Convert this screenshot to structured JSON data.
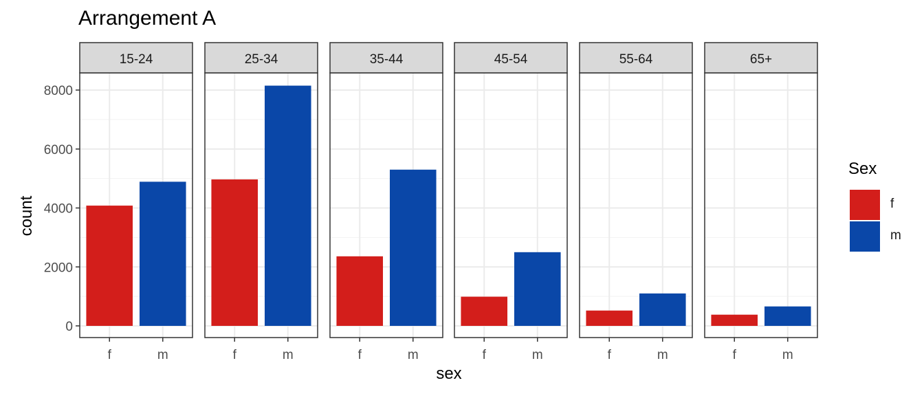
{
  "chart_data": {
    "type": "bar",
    "title": "Arrangement A",
    "xlabel": "sex",
    "ylabel": "count",
    "facets": [
      "15-24",
      "25-34",
      "35-44",
      "45-54",
      "55-64",
      "65+"
    ],
    "categories": [
      "f",
      "m"
    ],
    "values": [
      [
        4080,
        4890
      ],
      [
        4970,
        8150
      ],
      [
        2360,
        5300
      ],
      [
        990,
        2500
      ],
      [
        520,
        1100
      ],
      [
        380,
        660
      ]
    ],
    "ylim": [
      0,
      9000
    ],
    "yticks": [
      "0",
      "2000",
      "4000",
      "6000",
      "8000"
    ],
    "ytick_values": [
      0,
      2000,
      4000,
      6000,
      8000
    ],
    "grid": true,
    "legend": {
      "title": "Sex",
      "position": "right",
      "entries": [
        {
          "label": "f",
          "color": "#D31E1B"
        },
        {
          "label": "m",
          "color": "#0A47A8"
        }
      ]
    },
    "colors": {
      "f": "#D31E1B",
      "m": "#0A47A8"
    }
  }
}
